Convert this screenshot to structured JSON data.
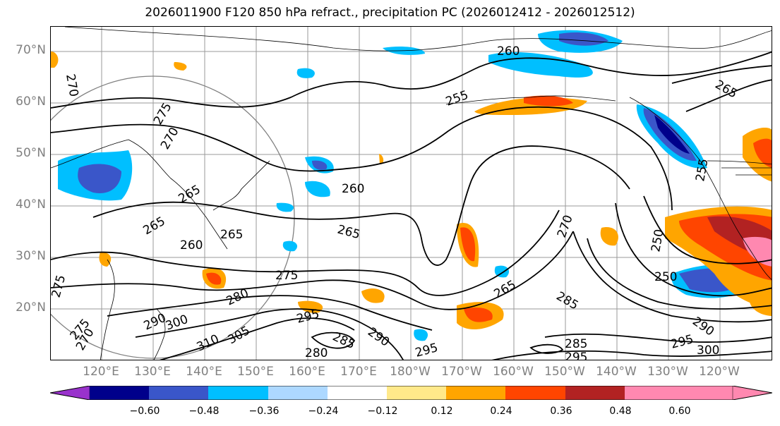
{
  "title": "2026011900 F120 850 hPa refract., precipitation PC (2026012412 - 2026012512)",
  "map": {
    "lat_labels": [
      "70°N",
      "60°N",
      "50°N",
      "40°N",
      "30°N",
      "20°N"
    ],
    "lon_labels": [
      "120°E",
      "130°E",
      "140°E",
      "150°E",
      "160°E",
      "170°E",
      "180°W",
      "170°W",
      "160°W",
      "150°W",
      "140°W",
      "130°W",
      "120°W"
    ],
    "contour_labels": [
      "270",
      "260",
      "255",
      "265",
      "275",
      "270",
      "265",
      "260",
      "265",
      "260",
      "265",
      "265",
      "255",
      "275",
      "250",
      "250",
      "285",
      "280",
      "290",
      "300",
      "310",
      "305",
      "295",
      "285",
      "290",
      "280",
      "295",
      "285",
      "295",
      "265",
      "270",
      "290",
      "300",
      "295",
      "275",
      "275",
      "270"
    ]
  },
  "colorbar": {
    "colors": [
      "#9932cc",
      "#00008b",
      "#3a56c9",
      "#00bfff",
      "#add8ff",
      "#ffffff",
      "#ffe98a",
      "#ffa500",
      "#ff4500",
      "#b22222",
      "#ff88b0"
    ],
    "ticks": [
      "−0.60",
      "−0.48",
      "−0.36",
      "−0.24",
      "−0.12",
      "0.12",
      "0.24",
      "0.36",
      "0.48",
      "0.60"
    ]
  }
}
